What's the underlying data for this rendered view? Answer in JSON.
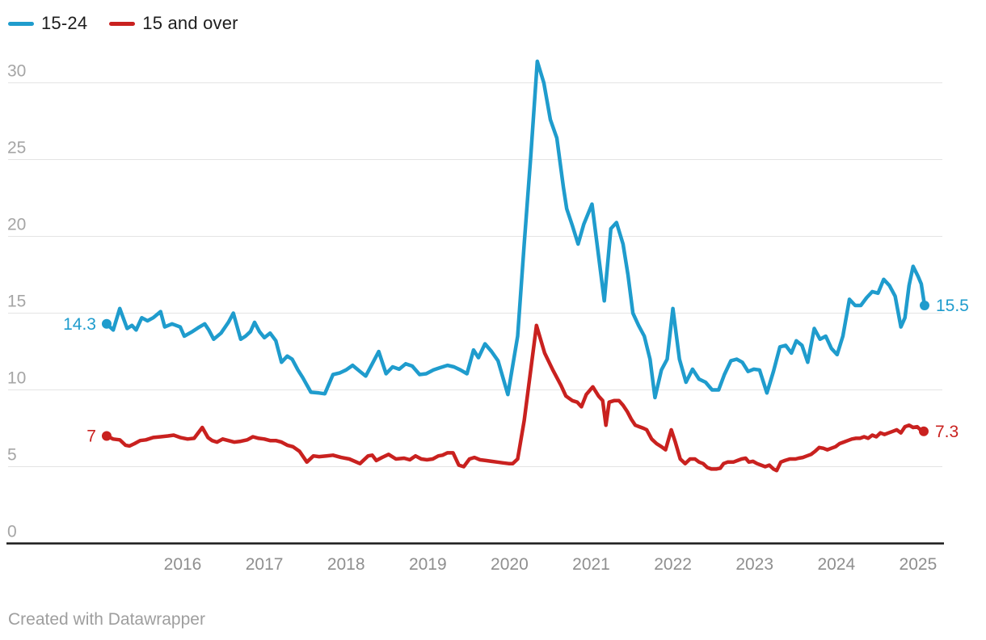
{
  "footer": {
    "credit": "Created with Datawrapper"
  },
  "colors": {
    "grid": "#e4e4e4",
    "zero_axis": "#1a1a1a",
    "y_tick_labels": "#a5a5a5",
    "x_tick_labels": "#8f8f8f",
    "legend_text": "#1d1d1d",
    "footer_text": "#9e9e9e",
    "background": "#ffffff"
  },
  "chart_data": {
    "type": "line",
    "title": "",
    "xlabel": "",
    "ylabel": "",
    "legend_position": "top-left",
    "grid": true,
    "x_axis": {
      "ticks": [
        2016,
        2017,
        2018,
        2019,
        2020,
        2021,
        2022,
        2023,
        2024,
        2025
      ],
      "range": [
        2015.05,
        2025.85
      ]
    },
    "y_axis": {
      "ticks": [
        0,
        5,
        10,
        15,
        20,
        25,
        30
      ],
      "range": [
        0,
        33
      ]
    },
    "series": [
      {
        "name": "15-24",
        "color": "#1f9ccd",
        "start_label": "14.3",
        "end_label": "15.5",
        "points": [
          [
            2015.07,
            14.3
          ],
          [
            2015.15,
            13.9
          ],
          [
            2015.23,
            15.3
          ],
          [
            2015.32,
            14.0
          ],
          [
            2015.38,
            14.2
          ],
          [
            2015.43,
            13.9
          ],
          [
            2015.5,
            14.7
          ],
          [
            2015.57,
            14.5
          ],
          [
            2015.64,
            14.7
          ],
          [
            2015.73,
            15.1
          ],
          [
            2015.78,
            14.1
          ],
          [
            2015.87,
            14.3
          ],
          [
            2015.97,
            14.1
          ],
          [
            2016.02,
            13.5
          ],
          [
            2016.12,
            13.8
          ],
          [
            2016.19,
            14.05
          ],
          [
            2016.27,
            14.3
          ],
          [
            2016.32,
            13.9
          ],
          [
            2016.38,
            13.3
          ],
          [
            2016.47,
            13.7
          ],
          [
            2016.56,
            14.4
          ],
          [
            2016.62,
            15.0
          ],
          [
            2016.71,
            13.3
          ],
          [
            2016.77,
            13.5
          ],
          [
            2016.83,
            13.8
          ],
          [
            2016.88,
            14.4
          ],
          [
            2016.94,
            13.8
          ],
          [
            2017.0,
            13.4
          ],
          [
            2017.07,
            13.7
          ],
          [
            2017.14,
            13.2
          ],
          [
            2017.21,
            11.8
          ],
          [
            2017.28,
            12.2
          ],
          [
            2017.34,
            12.0
          ],
          [
            2017.41,
            11.3
          ],
          [
            2017.47,
            10.8
          ],
          [
            2017.57,
            9.85
          ],
          [
            2017.67,
            9.8
          ],
          [
            2017.74,
            9.75
          ],
          [
            2017.84,
            11.0
          ],
          [
            2017.92,
            11.1
          ],
          [
            2018.0,
            11.3
          ],
          [
            2018.08,
            11.6
          ],
          [
            2018.17,
            11.2
          ],
          [
            2018.24,
            10.9
          ],
          [
            2018.32,
            11.7
          ],
          [
            2018.4,
            12.5
          ],
          [
            2018.49,
            11.05
          ],
          [
            2018.57,
            11.5
          ],
          [
            2018.65,
            11.35
          ],
          [
            2018.73,
            11.7
          ],
          [
            2018.81,
            11.55
          ],
          [
            2018.9,
            11.0
          ],
          [
            2018.98,
            11.05
          ],
          [
            2019.07,
            11.3
          ],
          [
            2019.15,
            11.45
          ],
          [
            2019.24,
            11.6
          ],
          [
            2019.32,
            11.5
          ],
          [
            2019.4,
            11.3
          ],
          [
            2019.48,
            11.05
          ],
          [
            2019.56,
            12.6
          ],
          [
            2019.62,
            12.1
          ],
          [
            2019.7,
            13.0
          ],
          [
            2019.78,
            12.5
          ],
          [
            2019.86,
            11.9
          ],
          [
            2019.98,
            9.7
          ],
          [
            2020.1,
            13.5
          ],
          [
            2020.18,
            19.5
          ],
          [
            2020.26,
            25.2
          ],
          [
            2020.34,
            31.4
          ],
          [
            2020.42,
            30.0
          ],
          [
            2020.5,
            27.6
          ],
          [
            2020.58,
            26.4
          ],
          [
            2020.66,
            23.2
          ],
          [
            2020.7,
            21.8
          ],
          [
            2020.77,
            20.7
          ],
          [
            2020.84,
            19.5
          ],
          [
            2020.91,
            20.8
          ],
          [
            2021.01,
            22.1
          ],
          [
            2021.16,
            15.8
          ],
          [
            2021.24,
            20.5
          ],
          [
            2021.31,
            20.9
          ],
          [
            2021.39,
            19.5
          ],
          [
            2021.45,
            17.5
          ],
          [
            2021.51,
            15.0
          ],
          [
            2021.58,
            14.2
          ],
          [
            2021.65,
            13.5
          ],
          [
            2021.72,
            12.0
          ],
          [
            2021.78,
            9.5
          ],
          [
            2021.86,
            11.3
          ],
          [
            2021.93,
            12.0
          ],
          [
            2022.0,
            15.3
          ],
          [
            2022.08,
            12.0
          ],
          [
            2022.16,
            10.5
          ],
          [
            2022.24,
            11.35
          ],
          [
            2022.32,
            10.7
          ],
          [
            2022.4,
            10.5
          ],
          [
            2022.48,
            10.0
          ],
          [
            2022.56,
            10.0
          ],
          [
            2022.63,
            11.0
          ],
          [
            2022.71,
            11.9
          ],
          [
            2022.78,
            12.0
          ],
          [
            2022.85,
            11.8
          ],
          [
            2022.92,
            11.2
          ],
          [
            2022.99,
            11.35
          ],
          [
            2023.06,
            11.3
          ],
          [
            2023.15,
            9.8
          ],
          [
            2023.23,
            11.2
          ],
          [
            2023.31,
            12.8
          ],
          [
            2023.38,
            12.9
          ],
          [
            2023.45,
            12.4
          ],
          [
            2023.51,
            13.2
          ],
          [
            2023.58,
            12.9
          ],
          [
            2023.65,
            11.8
          ],
          [
            2023.73,
            14.0
          ],
          [
            2023.8,
            13.3
          ],
          [
            2023.87,
            13.5
          ],
          [
            2023.94,
            12.7
          ],
          [
            2024.01,
            12.3
          ],
          [
            2024.08,
            13.5
          ],
          [
            2024.16,
            15.9
          ],
          [
            2024.23,
            15.5
          ],
          [
            2024.3,
            15.5
          ],
          [
            2024.37,
            16.0
          ],
          [
            2024.44,
            16.4
          ],
          [
            2024.51,
            16.3
          ],
          [
            2024.58,
            17.2
          ],
          [
            2024.65,
            16.8
          ],
          [
            2024.72,
            16.1
          ],
          [
            2024.79,
            14.1
          ],
          [
            2024.84,
            14.7
          ],
          [
            2024.89,
            16.8
          ],
          [
            2024.94,
            18.05
          ],
          [
            2025.0,
            17.4
          ],
          [
            2025.04,
            16.9
          ],
          [
            2025.08,
            15.5
          ]
        ]
      },
      {
        "name": "15 and over",
        "color": "#c9211f",
        "start_label": "7",
        "end_label": "7.3",
        "points": [
          [
            2015.07,
            7.0
          ],
          [
            2015.15,
            6.8
          ],
          [
            2015.23,
            6.75
          ],
          [
            2015.3,
            6.4
          ],
          [
            2015.35,
            6.35
          ],
          [
            2015.41,
            6.5
          ],
          [
            2015.48,
            6.7
          ],
          [
            2015.55,
            6.75
          ],
          [
            2015.64,
            6.9
          ],
          [
            2015.73,
            6.95
          ],
          [
            2015.82,
            7.0
          ],
          [
            2015.89,
            7.05
          ],
          [
            2015.97,
            6.9
          ],
          [
            2016.06,
            6.8
          ],
          [
            2016.14,
            6.85
          ],
          [
            2016.24,
            7.55
          ],
          [
            2016.31,
            6.9
          ],
          [
            2016.36,
            6.7
          ],
          [
            2016.42,
            6.6
          ],
          [
            2016.49,
            6.8
          ],
          [
            2016.56,
            6.7
          ],
          [
            2016.63,
            6.6
          ],
          [
            2016.71,
            6.65
          ],
          [
            2016.79,
            6.75
          ],
          [
            2016.86,
            6.95
          ],
          [
            2016.93,
            6.85
          ],
          [
            2017.0,
            6.8
          ],
          [
            2017.07,
            6.7
          ],
          [
            2017.14,
            6.7
          ],
          [
            2017.21,
            6.6
          ],
          [
            2017.28,
            6.4
          ],
          [
            2017.35,
            6.3
          ],
          [
            2017.43,
            6.0
          ],
          [
            2017.52,
            5.3
          ],
          [
            2017.6,
            5.7
          ],
          [
            2017.67,
            5.65
          ],
          [
            2017.76,
            5.7
          ],
          [
            2017.84,
            5.75
          ],
          [
            2017.94,
            5.6
          ],
          [
            2018.04,
            5.5
          ],
          [
            2018.17,
            5.2
          ],
          [
            2018.27,
            5.7
          ],
          [
            2018.32,
            5.75
          ],
          [
            2018.37,
            5.4
          ],
          [
            2018.44,
            5.6
          ],
          [
            2018.52,
            5.8
          ],
          [
            2018.61,
            5.5
          ],
          [
            2018.71,
            5.55
          ],
          [
            2018.78,
            5.45
          ],
          [
            2018.85,
            5.7
          ],
          [
            2018.92,
            5.5
          ],
          [
            2018.99,
            5.45
          ],
          [
            2019.06,
            5.5
          ],
          [
            2019.13,
            5.7
          ],
          [
            2019.18,
            5.75
          ],
          [
            2019.24,
            5.9
          ],
          [
            2019.31,
            5.9
          ],
          [
            2019.38,
            5.1
          ],
          [
            2019.44,
            5.0
          ],
          [
            2019.51,
            5.5
          ],
          [
            2019.57,
            5.6
          ],
          [
            2019.64,
            5.45
          ],
          [
            2019.71,
            5.4
          ],
          [
            2019.78,
            5.35
          ],
          [
            2019.85,
            5.3
          ],
          [
            2019.92,
            5.25
          ],
          [
            2019.99,
            5.2
          ],
          [
            2020.04,
            5.2
          ],
          [
            2020.1,
            5.5
          ],
          [
            2020.18,
            8.0
          ],
          [
            2020.26,
            11.3
          ],
          [
            2020.33,
            14.2
          ],
          [
            2020.43,
            12.4
          ],
          [
            2020.53,
            11.3
          ],
          [
            2020.63,
            10.3
          ],
          [
            2020.69,
            9.6
          ],
          [
            2020.77,
            9.3
          ],
          [
            2020.83,
            9.2
          ],
          [
            2020.88,
            8.9
          ],
          [
            2020.94,
            9.7
          ],
          [
            2021.02,
            10.2
          ],
          [
            2021.09,
            9.6
          ],
          [
            2021.14,
            9.3
          ],
          [
            2021.18,
            7.7
          ],
          [
            2021.22,
            9.2
          ],
          [
            2021.28,
            9.3
          ],
          [
            2021.34,
            9.3
          ],
          [
            2021.39,
            9.0
          ],
          [
            2021.44,
            8.6
          ],
          [
            2021.49,
            8.1
          ],
          [
            2021.54,
            7.7
          ],
          [
            2021.59,
            7.6
          ],
          [
            2021.64,
            7.5
          ],
          [
            2021.68,
            7.4
          ],
          [
            2021.74,
            6.8
          ],
          [
            2021.8,
            6.5
          ],
          [
            2021.86,
            6.3
          ],
          [
            2021.91,
            6.1
          ],
          [
            2021.98,
            7.4
          ],
          [
            2022.03,
            6.6
          ],
          [
            2022.09,
            5.5
          ],
          [
            2022.15,
            5.2
          ],
          [
            2022.21,
            5.5
          ],
          [
            2022.27,
            5.5
          ],
          [
            2022.32,
            5.3
          ],
          [
            2022.37,
            5.2
          ],
          [
            2022.42,
            4.95
          ],
          [
            2022.47,
            4.85
          ],
          [
            2022.53,
            4.85
          ],
          [
            2022.58,
            4.9
          ],
          [
            2022.62,
            5.2
          ],
          [
            2022.67,
            5.3
          ],
          [
            2022.74,
            5.3
          ],
          [
            2022.79,
            5.4
          ],
          [
            2022.84,
            5.5
          ],
          [
            2022.89,
            5.55
          ],
          [
            2022.93,
            5.3
          ],
          [
            2022.98,
            5.35
          ],
          [
            2023.03,
            5.2
          ],
          [
            2023.08,
            5.1
          ],
          [
            2023.13,
            5.0
          ],
          [
            2023.18,
            5.1
          ],
          [
            2023.23,
            4.85
          ],
          [
            2023.27,
            4.75
          ],
          [
            2023.32,
            5.3
          ],
          [
            2023.37,
            5.4
          ],
          [
            2023.43,
            5.5
          ],
          [
            2023.5,
            5.5
          ],
          [
            2023.54,
            5.55
          ],
          [
            2023.59,
            5.6
          ],
          [
            2023.64,
            5.7
          ],
          [
            2023.69,
            5.8
          ],
          [
            2023.74,
            6.0
          ],
          [
            2023.79,
            6.25
          ],
          [
            2023.84,
            6.2
          ],
          [
            2023.89,
            6.1
          ],
          [
            2023.94,
            6.2
          ],
          [
            2023.99,
            6.3
          ],
          [
            2024.04,
            6.5
          ],
          [
            2024.09,
            6.6
          ],
          [
            2024.14,
            6.7
          ],
          [
            2024.19,
            6.8
          ],
          [
            2024.24,
            6.85
          ],
          [
            2024.29,
            6.85
          ],
          [
            2024.34,
            6.95
          ],
          [
            2024.39,
            6.85
          ],
          [
            2024.44,
            7.05
          ],
          [
            2024.49,
            6.95
          ],
          [
            2024.54,
            7.2
          ],
          [
            2024.59,
            7.1
          ],
          [
            2024.64,
            7.2
          ],
          [
            2024.69,
            7.3
          ],
          [
            2024.74,
            7.4
          ],
          [
            2024.79,
            7.2
          ],
          [
            2024.84,
            7.6
          ],
          [
            2024.89,
            7.7
          ],
          [
            2024.94,
            7.55
          ],
          [
            2024.99,
            7.6
          ],
          [
            2025.03,
            7.4
          ],
          [
            2025.07,
            7.3
          ]
        ]
      }
    ]
  }
}
